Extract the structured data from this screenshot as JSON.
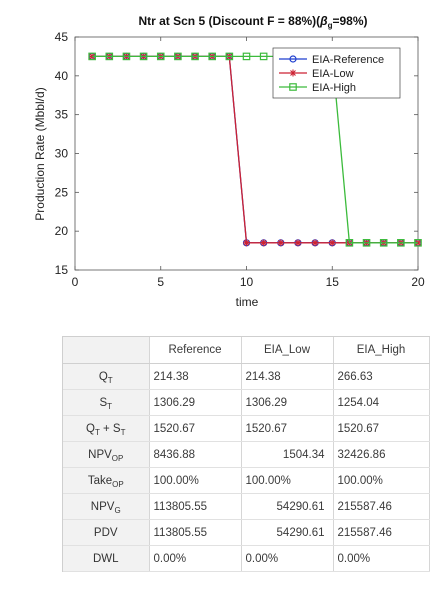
{
  "chart_data": {
    "type": "line",
    "title_prefix": "Ntr at Scn 5 (Discount F = 88%)(",
    "title_greek": "β",
    "title_sub": "g",
    "title_suffix": "=98%)",
    "xlabel": "time",
    "ylabel": "Production Rate (Mbbl/d)",
    "xlim": [
      0,
      20
    ],
    "ylim": [
      15,
      45
    ],
    "xticks": [
      0,
      5,
      10,
      15,
      20
    ],
    "yticks": [
      15,
      20,
      25,
      30,
      35,
      40,
      45
    ],
    "grid": false,
    "legend_position": "top-right",
    "x": [
      1,
      2,
      3,
      4,
      5,
      6,
      7,
      8,
      9,
      10,
      11,
      12,
      13,
      14,
      15,
      16,
      17,
      18,
      19,
      20
    ],
    "series": [
      {
        "name": "EIA-Reference",
        "color": "#1f3fcf",
        "marker": "circle",
        "values": [
          42.5,
          42.5,
          42.5,
          42.5,
          42.5,
          42.5,
          42.5,
          42.5,
          42.5,
          18.5,
          18.5,
          18.5,
          18.5,
          18.5,
          18.5,
          18.5,
          18.5,
          18.5,
          18.5,
          18.5
        ]
      },
      {
        "name": "EIA-Low",
        "color": "#cc2233",
        "marker": "star",
        "values": [
          42.5,
          42.5,
          42.5,
          42.5,
          42.5,
          42.5,
          42.5,
          42.5,
          42.5,
          18.5,
          18.5,
          18.5,
          18.5,
          18.5,
          18.5,
          18.5,
          18.5,
          18.5,
          18.5,
          18.5
        ]
      },
      {
        "name": "EIA-High",
        "color": "#3cbb3c",
        "marker": "square",
        "values": [
          42.5,
          42.5,
          42.5,
          42.5,
          42.5,
          42.5,
          42.5,
          42.5,
          42.5,
          42.5,
          42.5,
          42.5,
          42.5,
          42.5,
          42.5,
          18.5,
          18.5,
          18.5,
          18.5,
          18.5
        ]
      }
    ]
  },
  "table": {
    "columns": [
      "Reference",
      "EIA_Low",
      "EIA_High"
    ],
    "rows": [
      {
        "label": "Q",
        "sub": "T",
        "label_extra": "",
        "sub2": "",
        "values": [
          "214.38",
          "214.38",
          "266.63"
        ]
      },
      {
        "label": "S",
        "sub": "T",
        "label_extra": "",
        "sub2": "",
        "values": [
          "1306.29",
          "1306.29",
          "1254.04"
        ]
      },
      {
        "label": "Q",
        "sub": "T",
        "label_extra": " + S",
        "sub2": "T",
        "values": [
          "1520.67",
          "1520.67",
          "1520.67"
        ]
      },
      {
        "label": "NPV",
        "sub": "OP",
        "label_extra": "",
        "sub2": "",
        "values": [
          "8436.88",
          "1504.34",
          "32426.86"
        ]
      },
      {
        "label": "Take",
        "sub": "OP",
        "label_extra": "",
        "sub2": "",
        "values": [
          "100.00%",
          "100.00%",
          "100.00%"
        ]
      },
      {
        "label": "NPV",
        "sub": "G",
        "label_extra": "",
        "sub2": "",
        "values": [
          "113805.55",
          "54290.61",
          "215587.46"
        ]
      },
      {
        "label": "PDV",
        "sub": "",
        "label_extra": "",
        "sub2": "",
        "values": [
          "113805.55",
          "54290.61",
          "215587.46"
        ]
      },
      {
        "label": "DWL",
        "sub": "",
        "label_extra": "",
        "sub2": "",
        "values": [
          "0.00%",
          "0.00%",
          "0.00%"
        ]
      }
    ]
  }
}
